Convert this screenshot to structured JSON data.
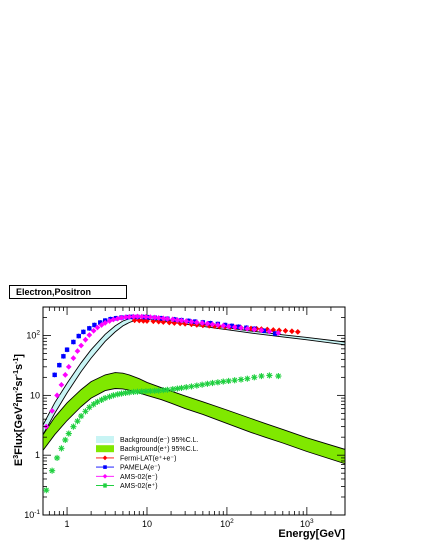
{
  "chart_data": {
    "type": "scatter",
    "title": "Electron,Positron",
    "xlabel": "Energy[GeV]",
    "ylabel": "E^3Flux[GeV^2 m^-2 sr^-1 s^-1]",
    "xscale": "log",
    "yscale": "log",
    "xlim": [
      0.5,
      3000
    ],
    "ylim": [
      0.1,
      300
    ],
    "legend_position": "lower-center",
    "x_tick_labels": [
      "1",
      "10",
      "10^2",
      "10^3"
    ],
    "y_tick_labels": [
      "10^-1",
      "1",
      "10",
      "10^2"
    ],
    "bands": [
      {
        "name": "Background(e⁻) 95%C.L.",
        "color": "#c8f4f4",
        "x": [
          0.5,
          0.7,
          1,
          1.5,
          2,
          3,
          4,
          5,
          6,
          7,
          8,
          10,
          15,
          20,
          30,
          50,
          100,
          200,
          500,
          1000,
          3000
        ],
        "lower": [
          2.2,
          5,
          11,
          25,
          42,
          80,
          115,
          145,
          165,
          178,
          185,
          186,
          178,
          168,
          155,
          142,
          125,
          110,
          95,
          85,
          70
        ],
        "upper": [
          3.2,
          7.5,
          16,
          35,
          58,
          105,
          145,
          175,
          192,
          202,
          208,
          205,
          192,
          180,
          167,
          153,
          135,
          119,
          103,
          93,
          78
        ]
      },
      {
        "name": "Background(e⁺) 95%C.L.",
        "color": "#80e800",
        "x": [
          0.5,
          0.7,
          1,
          1.5,
          2,
          3,
          4,
          5,
          6,
          8,
          10,
          15,
          20,
          30,
          50,
          100,
          200,
          300,
          500,
          1000,
          3000
        ],
        "lower": [
          1.2,
          2.2,
          3.8,
          6.5,
          9,
          12,
          13,
          12.8,
          12.2,
          11,
          10,
          8.5,
          7.4,
          6,
          4.8,
          3.4,
          2.4,
          2,
          1.6,
          1.15,
          0.72
        ],
        "upper": [
          2.2,
          4.3,
          7.5,
          12.5,
          17,
          22,
          24,
          23.5,
          22,
          19,
          16.5,
          13.5,
          11.8,
          9.8,
          7.8,
          5.7,
          4.1,
          3.4,
          2.7,
          1.95,
          1.25
        ]
      }
    ],
    "series": [
      {
        "name": "Fermi-LAT(e⁺+e⁻)",
        "color": "#ff0000",
        "marker": "diamond",
        "x": [
          7,
          8,
          9,
          10,
          12,
          14,
          16,
          19,
          22,
          26,
          30,
          36,
          42,
          50,
          60,
          70,
          80,
          95,
          110,
          130,
          150,
          175,
          200,
          235,
          270,
          320,
          380,
          450,
          540,
          650,
          770
        ],
        "y": [
          180,
          178,
          176,
          175,
          173,
          171,
          168,
          165,
          162,
          160,
          157,
          154,
          151,
          148,
          146,
          144,
          142,
          140,
          139,
          137,
          135,
          133,
          131,
          130,
          128,
          126,
          124,
          122,
          120,
          118,
          115
        ]
      },
      {
        "name": "PAMELA(e⁻)",
        "color": "#0000ff",
        "marker": "square",
        "x": [
          0.7,
          0.8,
          0.9,
          1,
          1.2,
          1.4,
          1.6,
          1.9,
          2.2,
          2.6,
          3,
          3.5,
          4.1,
          4.8,
          5.6,
          6.5,
          7.6,
          9,
          10.5,
          12.5,
          15,
          18,
          22,
          27,
          33,
          40,
          50,
          62,
          77,
          95,
          115,
          140,
          175,
          220,
          290,
          400
        ],
        "y": [
          22,
          32,
          45,
          58,
          78,
          98,
          115,
          132,
          150,
          165,
          178,
          188,
          195,
          200,
          203,
          205,
          205,
          204,
          202,
          199,
          195,
          191,
          186,
          181,
          176,
          171,
          166,
          161,
          156,
          150,
          145,
          140,
          135,
          130,
          120,
          108
        ]
      },
      {
        "name": "AMS-02(e⁻)",
        "color": "#ff00ff",
        "marker": "diamond",
        "x": [
          0.55,
          0.65,
          0.75,
          0.85,
          0.95,
          1.05,
          1.2,
          1.35,
          1.5,
          1.7,
          1.9,
          2.15,
          2.4,
          2.7,
          3,
          3.4,
          3.8,
          4.3,
          4.8,
          5.4,
          6,
          6.8,
          7.6,
          8.6,
          9.7,
          11,
          12.5,
          14,
          16,
          18,
          21,
          24,
          27,
          31,
          36,
          42,
          49,
          57,
          66,
          77,
          90,
          105,
          125,
          150,
          180,
          220,
          270,
          340,
          440
        ],
        "y": [
          3,
          5.5,
          10,
          15,
          22,
          30,
          42,
          55,
          68,
          85,
          102,
          120,
          136,
          150,
          163,
          175,
          185,
          192,
          198,
          202,
          205,
          207,
          208,
          207,
          205,
          203,
          200,
          197,
          194,
          190,
          186,
          182,
          178,
          174,
          170,
          166,
          162,
          158,
          154,
          150,
          146,
          142,
          138,
          134,
          130,
          126,
          122,
          117,
          110
        ]
      },
      {
        "name": "AMS-02(e⁺)",
        "color": "#20d040",
        "marker": "star",
        "x": [
          0.55,
          0.65,
          0.75,
          0.85,
          0.95,
          1.05,
          1.2,
          1.35,
          1.5,
          1.7,
          1.9,
          2.15,
          2.4,
          2.7,
          3,
          3.4,
          3.8,
          4.3,
          4.8,
          5.4,
          6,
          6.8,
          7.6,
          8.6,
          9.7,
          11,
          12.5,
          14,
          16,
          18,
          21,
          24,
          27,
          31,
          36,
          42,
          49,
          57,
          66,
          77,
          90,
          105,
          125,
          150,
          180,
          220,
          270,
          340,
          440
        ],
        "y": [
          0.26,
          0.55,
          0.9,
          1.3,
          1.8,
          2.3,
          3,
          3.7,
          4.5,
          5.4,
          6.3,
          7.1,
          7.8,
          8.4,
          9,
          9.5,
          10,
          10.4,
          10.7,
          11,
          11.2,
          11.4,
          11.5,
          11.6,
          11.7,
          11.8,
          11.9,
          12,
          12.2,
          12.4,
          12.7,
          13,
          13.3,
          13.7,
          14.1,
          14.6,
          15.1,
          15.6,
          16.1,
          16.5,
          17,
          17.4,
          17.9,
          18.4,
          19,
          20,
          21,
          21.5,
          21
        ]
      }
    ]
  }
}
